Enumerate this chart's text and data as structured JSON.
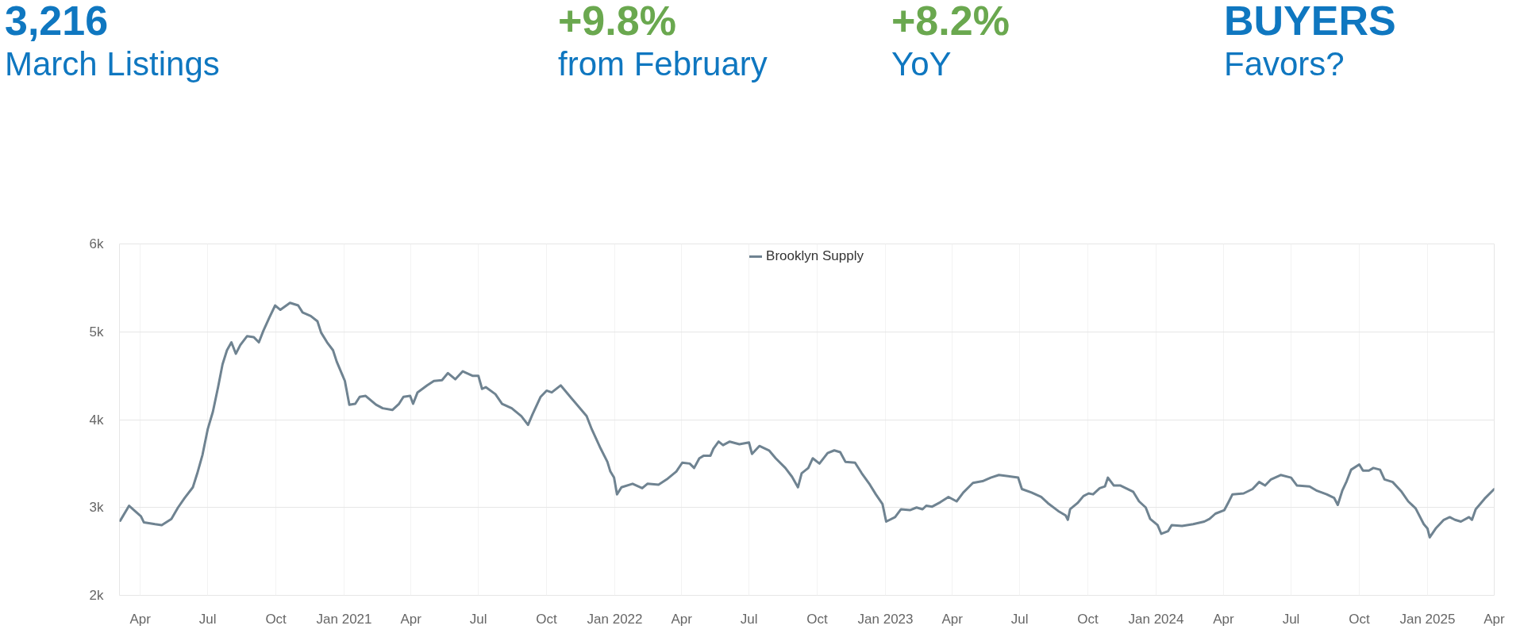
{
  "chart_data": {
    "type": "line",
    "annotations": [
      "3,216",
      "March Listings",
      "+9.8%",
      "from February",
      "+8.2%",
      "YoY",
      "BUYERS",
      "Favors?"
    ],
    "x": [
      "2020-03-05",
      "2020-03-17",
      "2020-04-02",
      "2020-04-06",
      "2020-04-21",
      "2020-04-30",
      "2020-05-13",
      "2020-05-22",
      "2020-05-31",
      "2020-06-11",
      "2020-06-17",
      "2020-06-24",
      "2020-07-01",
      "2020-07-08",
      "2020-07-15",
      "2020-07-21",
      "2020-07-27",
      "2020-08-02",
      "2020-08-08",
      "2020-08-14",
      "2020-08-23",
      "2020-09-01",
      "2020-09-08",
      "2020-09-14",
      "2020-09-22",
      "2020-09-30",
      "2020-10-07",
      "2020-10-20",
      "2020-10-31",
      "2020-11-06",
      "2020-11-17",
      "2020-11-26",
      "2020-12-01",
      "2020-12-09",
      "2020-12-17",
      "2020-12-22",
      "2020-12-29",
      "2021-01-02",
      "2021-01-08",
      "2021-01-16",
      "2021-01-22",
      "2021-01-30",
      "2021-02-13",
      "2021-02-22",
      "2021-03-07",
      "2021-03-16",
      "2021-03-22",
      "2021-03-31",
      "2021-04-04",
      "2021-04-10",
      "2021-04-23",
      "2021-05-02",
      "2021-05-13",
      "2021-05-21",
      "2021-05-31",
      "2021-06-10",
      "2021-06-23",
      "2021-07-01",
      "2021-07-06",
      "2021-07-11",
      "2021-07-24",
      "2021-08-02",
      "2021-08-15",
      "2021-08-28",
      "2021-09-06",
      "2021-09-12",
      "2021-09-23",
      "2021-10-01",
      "2021-10-08",
      "2021-10-20",
      "2021-11-04",
      "2021-11-24",
      "2021-12-01",
      "2021-12-13",
      "2021-12-22",
      "2021-12-26",
      "2021-12-31",
      "2022-01-04",
      "2022-01-10",
      "2022-01-25",
      "2022-02-07",
      "2022-02-14",
      "2022-03-01",
      "2022-03-12",
      "2022-03-25",
      "2022-04-02",
      "2022-04-12",
      "2022-04-18",
      "2022-04-25",
      "2022-05-01",
      "2022-05-10",
      "2022-05-14",
      "2022-05-21",
      "2022-05-27",
      "2022-06-05",
      "2022-06-18",
      "2022-07-01",
      "2022-07-05",
      "2022-07-15",
      "2022-07-28",
      "2022-08-06",
      "2022-08-19",
      "2022-08-28",
      "2022-09-05",
      "2022-09-10",
      "2022-09-19",
      "2022-09-25",
      "2022-10-04",
      "2022-10-15",
      "2022-10-24",
      "2022-11-01",
      "2022-11-08",
      "2022-11-21",
      "2022-11-30",
      "2022-12-11",
      "2022-12-19",
      "2022-12-28",
      "2023-01-02",
      "2023-01-14",
      "2023-01-22",
      "2023-02-03",
      "2023-02-12",
      "2023-02-20",
      "2023-02-25",
      "2023-03-05",
      "2023-03-16",
      "2023-03-27",
      "2023-04-07",
      "2023-04-16",
      "2023-04-29",
      "2023-05-12",
      "2023-05-23",
      "2023-06-03",
      "2023-06-21",
      "2023-06-29",
      "2023-07-04",
      "2023-07-17",
      "2023-07-30",
      "2023-08-08",
      "2023-08-22",
      "2023-09-01",
      "2023-09-04",
      "2023-09-07",
      "2023-09-17",
      "2023-09-25",
      "2023-10-02",
      "2023-10-08",
      "2023-10-17",
      "2023-10-24",
      "2023-10-28",
      "2023-11-05",
      "2023-11-14",
      "2023-12-01",
      "2023-12-09",
      "2023-12-18",
      "2023-12-24",
      "2024-01-03",
      "2024-01-08",
      "2024-01-17",
      "2024-01-22",
      "2024-02-05",
      "2024-02-20",
      "2024-03-06",
      "2024-03-13",
      "2024-03-21",
      "2024-04-02",
      "2024-04-07",
      "2024-04-13",
      "2024-04-28",
      "2024-05-10",
      "2024-05-19",
      "2024-05-27",
      "2024-06-04",
      "2024-06-17",
      "2024-07-01",
      "2024-07-09",
      "2024-07-26",
      "2024-08-05",
      "2024-08-18",
      "2024-08-28",
      "2024-09-02",
      "2024-09-08",
      "2024-09-14",
      "2024-09-20",
      "2024-10-01",
      "2024-10-06",
      "2024-10-14",
      "2024-10-20",
      "2024-10-29",
      "2024-11-04",
      "2024-11-15",
      "2024-11-27",
      "2024-12-06",
      "2024-12-16",
      "2024-12-27",
      "2025-01-01",
      "2025-01-04",
      "2025-01-12",
      "2025-01-23",
      "2025-01-31",
      "2025-02-07",
      "2025-02-15",
      "2025-02-26",
      "2025-03-02",
      "2025-03-07",
      "2025-03-19",
      "2025-04-01"
    ],
    "series": [
      {
        "name": "Brooklyn Supply",
        "color": "#6f8391",
        "values": [
          2850,
          3020,
          2900,
          2830,
          2810,
          2800,
          2870,
          3000,
          3110,
          3230,
          3390,
          3600,
          3890,
          4090,
          4370,
          4630,
          4790,
          4880,
          4750,
          4850,
          4950,
          4940,
          4880,
          5010,
          5160,
          5300,
          5250,
          5330,
          5300,
          5220,
          5180,
          5120,
          4990,
          4880,
          4790,
          4660,
          4520,
          4440,
          4170,
          4180,
          4260,
          4270,
          4170,
          4130,
          4110,
          4180,
          4260,
          4270,
          4180,
          4310,
          4390,
          4440,
          4450,
          4530,
          4460,
          4550,
          4500,
          4500,
          4350,
          4370,
          4290,
          4180,
          4130,
          4040,
          3940,
          4060,
          4260,
          4330,
          4310,
          4390,
          4240,
          4040,
          3890,
          3670,
          3520,
          3410,
          3340,
          3150,
          3230,
          3270,
          3220,
          3270,
          3260,
          3320,
          3410,
          3510,
          3500,
          3450,
          3560,
          3590,
          3590,
          3670,
          3750,
          3710,
          3750,
          3720,
          3740,
          3610,
          3700,
          3650,
          3560,
          3450,
          3350,
          3230,
          3390,
          3450,
          3560,
          3500,
          3620,
          3650,
          3630,
          3520,
          3510,
          3390,
          3260,
          3150,
          3040,
          2840,
          2890,
          2980,
          2970,
          3000,
          2980,
          3020,
          3010,
          3060,
          3120,
          3070,
          3170,
          3280,
          3300,
          3340,
          3370,
          3350,
          3340,
          3210,
          3170,
          3120,
          3050,
          2960,
          2910,
          2860,
          2980,
          3050,
          3130,
          3160,
          3150,
          3220,
          3240,
          3340,
          3250,
          3250,
          3180,
          3070,
          3000,
          2870,
          2800,
          2700,
          2730,
          2800,
          2790,
          2810,
          2840,
          2870,
          2930,
          2970,
          3050,
          3150,
          3160,
          3210,
          3290,
          3250,
          3320,
          3370,
          3340,
          3250,
          3240,
          3190,
          3150,
          3110,
          3030,
          3190,
          3300,
          3430,
          3490,
          3420,
          3420,
          3450,
          3430,
          3320,
          3290,
          3180,
          3070,
          2990,
          2810,
          2760,
          2660,
          2760,
          2860,
          2890,
          2860,
          2840,
          2890,
          2860,
          2980,
          3100,
          3210
        ]
      }
    ],
    "xlim": [
      "2020-03-04",
      "2025-04-01"
    ],
    "ylim": [
      2000,
      6000
    ],
    "xticks": [
      {
        "value": "2020-04-01",
        "label": "Apr"
      },
      {
        "value": "2020-07-01",
        "label": "Jul"
      },
      {
        "value": "2020-10-01",
        "label": "Oct"
      },
      {
        "value": "2021-01-01",
        "label": "Jan 2021"
      },
      {
        "value": "2021-04-01",
        "label": "Apr"
      },
      {
        "value": "2021-07-01",
        "label": "Jul"
      },
      {
        "value": "2021-10-01",
        "label": "Oct"
      },
      {
        "value": "2022-01-01",
        "label": "Jan 2022"
      },
      {
        "value": "2022-04-01",
        "label": "Apr"
      },
      {
        "value": "2022-07-01",
        "label": "Jul"
      },
      {
        "value": "2022-10-01",
        "label": "Oct"
      },
      {
        "value": "2023-01-01",
        "label": "Jan 2023"
      },
      {
        "value": "2023-04-01",
        "label": "Apr"
      },
      {
        "value": "2023-07-01",
        "label": "Jul"
      },
      {
        "value": "2023-10-01",
        "label": "Oct"
      },
      {
        "value": "2024-01-01",
        "label": "Jan 2024"
      },
      {
        "value": "2024-04-01",
        "label": "Apr"
      },
      {
        "value": "2024-07-01",
        "label": "Jul"
      },
      {
        "value": "2024-10-01",
        "label": "Oct"
      },
      {
        "value": "2025-01-01",
        "label": "Jan 2025"
      },
      {
        "value": "2025-04-01",
        "label": "Apr"
      }
    ],
    "yticks": [
      {
        "value": 2000,
        "label": "2k"
      },
      {
        "value": 3000,
        "label": "3k"
      },
      {
        "value": 4000,
        "label": "4k"
      },
      {
        "value": 5000,
        "label": "5k"
      },
      {
        "value": 6000,
        "label": "6k"
      }
    ],
    "grid": true,
    "legend": "top",
    "line_style": "solid"
  }
}
